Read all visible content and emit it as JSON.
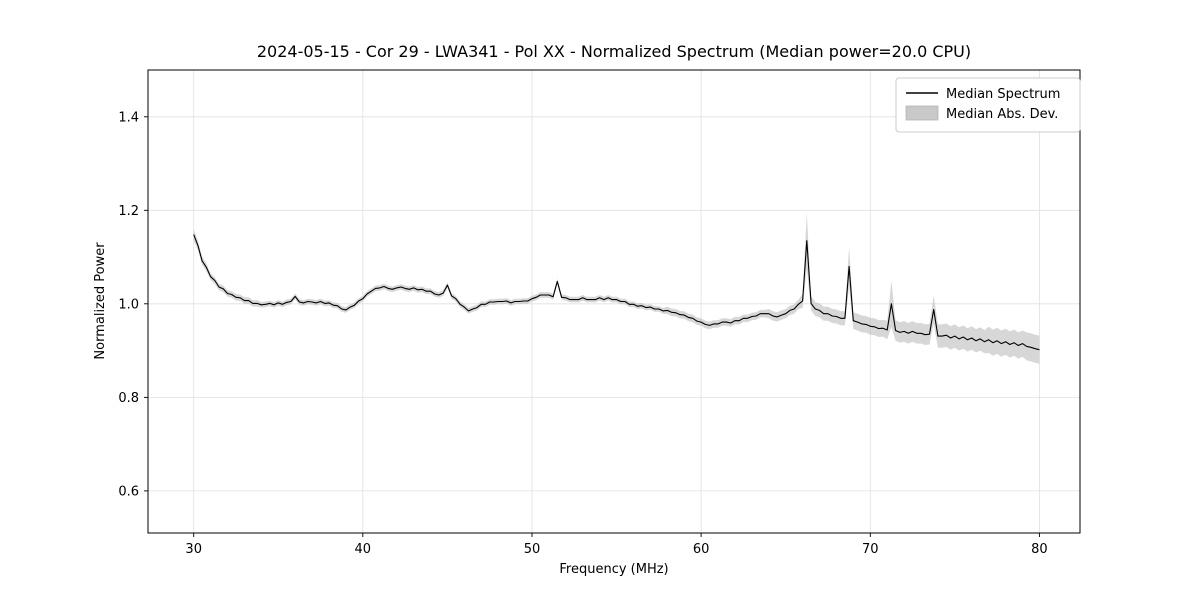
{
  "figure": {
    "background": "#ffffff"
  },
  "chart_data": {
    "type": "line",
    "title": "2024-05-15 - Cor 29 - LWA341 - Pol XX - Normalized Spectrum (Median power=20.0 CPU)",
    "xlabel": "Frequency (MHz)",
    "ylabel": "Normalized Power",
    "xlim": [
      27.3,
      82.4
    ],
    "ylim": [
      0.51,
      1.5
    ],
    "xticks": [
      30,
      40,
      50,
      60,
      70,
      80
    ],
    "yticks": [
      0.6,
      0.8,
      1.0,
      1.2,
      1.4
    ],
    "grid": true,
    "grid_color": "#e0e0e0",
    "line_color": "#000000",
    "band_color": "#bdbdbd",
    "band_opacity": 0.6,
    "legend": {
      "position": "upper right",
      "entries": [
        {
          "label": "Median Spectrum",
          "type": "line",
          "color": "#000000"
        },
        {
          "label": "Median Abs. Dev.",
          "type": "patch",
          "color": "#c9c9c9"
        }
      ]
    },
    "series": [
      {
        "name": "Median Spectrum",
        "key": "median"
      },
      {
        "name": "Median Abs. Dev.",
        "key": "mad"
      }
    ],
    "x": [
      30,
      30.25,
      30.5,
      30.75,
      31,
      31.25,
      31.5,
      31.75,
      32,
      32.25,
      32.5,
      32.75,
      33,
      33.25,
      33.5,
      33.75,
      34,
      34.25,
      34.5,
      34.75,
      35,
      35.25,
      35.5,
      35.75,
      36,
      36.25,
      36.5,
      36.75,
      37,
      37.25,
      37.5,
      37.75,
      38,
      38.25,
      38.5,
      38.75,
      39,
      39.25,
      39.5,
      39.75,
      40,
      40.25,
      40.5,
      40.75,
      41,
      41.25,
      41.5,
      41.75,
      42,
      42.25,
      42.5,
      42.75,
      43,
      43.25,
      43.5,
      43.75,
      44,
      44.25,
      44.5,
      44.75,
      45,
      45.25,
      45.5,
      45.75,
      46,
      46.25,
      46.5,
      46.75,
      47,
      47.25,
      47.5,
      47.75,
      48,
      48.25,
      48.5,
      48.75,
      49,
      49.25,
      49.5,
      49.75,
      50,
      50.25,
      50.5,
      50.75,
      51,
      51.25,
      51.5,
      51.75,
      52,
      52.25,
      52.5,
      52.75,
      53,
      53.25,
      53.5,
      53.75,
      54,
      54.25,
      54.5,
      54.75,
      55,
      55.25,
      55.5,
      55.75,
      56,
      56.25,
      56.5,
      56.75,
      57,
      57.25,
      57.5,
      57.75,
      58,
      58.25,
      58.5,
      58.75,
      59,
      59.25,
      59.5,
      59.75,
      60,
      60.25,
      60.5,
      60.75,
      61,
      61.25,
      61.5,
      61.75,
      62,
      62.25,
      62.5,
      62.75,
      63,
      63.25,
      63.5,
      63.75,
      64,
      64.25,
      64.5,
      64.75,
      65,
      65.25,
      65.5,
      65.75,
      66,
      66.25,
      66.5,
      66.75,
      67,
      67.25,
      67.5,
      67.75,
      68,
      68.25,
      68.5,
      68.75,
      69,
      69.25,
      69.5,
      69.75,
      70,
      70.25,
      70.5,
      70.75,
      71,
      71.25,
      71.5,
      71.75,
      72,
      72.25,
      72.5,
      72.75,
      73,
      73.25,
      73.5,
      73.75,
      74,
      74.25,
      74.5,
      74.75,
      75,
      75.25,
      75.5,
      75.75,
      76,
      76.25,
      76.5,
      76.75,
      77,
      77.25,
      77.5,
      77.75,
      78,
      78.25,
      78.5,
      78.75,
      79,
      79.25,
      79.5,
      79.75,
      80
    ],
    "median": [
      1.148,
      1.125,
      1.092,
      1.078,
      1.058,
      1.05,
      1.036,
      1.032,
      1.022,
      1.02,
      1.014,
      1.013,
      1.007,
      1.007,
      1.001,
      1.001,
      0.998,
      0.999,
      1.001,
      0.998,
      1.002,
      0.999,
      1.003,
      1.005,
      1.016,
      1.004,
      1.002,
      1.005,
      1.004,
      1.002,
      1.005,
      1.001,
      1.002,
      0.997,
      0.996,
      0.989,
      0.987,
      0.993,
      0.997,
      1.006,
      1.011,
      1.021,
      1.027,
      1.033,
      1.034,
      1.037,
      1.033,
      1.031,
      1.034,
      1.036,
      1.033,
      1.031,
      1.034,
      1.03,
      1.031,
      1.027,
      1.027,
      1.021,
      1.019,
      1.023,
      1.04,
      1.017,
      1.011,
      0.999,
      0.993,
      0.985,
      0.989,
      0.992,
      0.999,
      0.999,
      1.004,
      1.004,
      1.005,
      1.005,
      1.006,
      1.002,
      1.005,
      1.005,
      1.006,
      1.006,
      1.011,
      1.014,
      1.019,
      1.019,
      1.019,
      1.015,
      1.048,
      1.014,
      1.013,
      1.009,
      1.009,
      1.009,
      1.013,
      1.009,
      1.009,
      1.009,
      1.013,
      1.009,
      1.013,
      1.009,
      1.009,
      1.005,
      1.005,
      0.999,
      0.999,
      0.995,
      0.996,
      0.992,
      0.993,
      0.989,
      0.989,
      0.985,
      0.986,
      0.982,
      0.981,
      0.977,
      0.976,
      0.971,
      0.969,
      0.963,
      0.961,
      0.956,
      0.954,
      0.957,
      0.957,
      0.961,
      0.961,
      0.959,
      0.964,
      0.964,
      0.969,
      0.969,
      0.973,
      0.974,
      0.979,
      0.979,
      0.979,
      0.974,
      0.972,
      0.976,
      0.979,
      0.986,
      0.989,
      0.999,
      1.006,
      1.135,
      1.001,
      0.989,
      0.986,
      0.979,
      0.979,
      0.974,
      0.973,
      0.969,
      0.969,
      1.08,
      0.964,
      0.961,
      0.957,
      0.956,
      0.952,
      0.951,
      0.947,
      0.948,
      0.944,
      1.0,
      0.943,
      0.939,
      0.941,
      0.937,
      0.941,
      0.937,
      0.937,
      0.934,
      0.935,
      0.988,
      0.931,
      0.931,
      0.933,
      0.927,
      0.931,
      0.925,
      0.929,
      0.923,
      0.927,
      0.921,
      0.925,
      0.919,
      0.923,
      0.917,
      0.921,
      0.915,
      0.919,
      0.913,
      0.917,
      0.911,
      0.915,
      0.909,
      0.907,
      0.904,
      0.902
    ],
    "mad": [
      0.012,
      0.01,
      0.009,
      0.008,
      0.007,
      0.007,
      0.007,
      0.007,
      0.007,
      0.007,
      0.007,
      0.007,
      0.007,
      0.007,
      0.007,
      0.007,
      0.006,
      0.006,
      0.006,
      0.006,
      0.006,
      0.006,
      0.006,
      0.006,
      0.006,
      0.006,
      0.006,
      0.006,
      0.006,
      0.006,
      0.006,
      0.006,
      0.006,
      0.006,
      0.006,
      0.006,
      0.006,
      0.006,
      0.006,
      0.006,
      0.006,
      0.006,
      0.006,
      0.006,
      0.006,
      0.006,
      0.006,
      0.006,
      0.006,
      0.006,
      0.006,
      0.006,
      0.006,
      0.006,
      0.006,
      0.006,
      0.006,
      0.006,
      0.006,
      0.006,
      0.006,
      0.006,
      0.006,
      0.006,
      0.006,
      0.006,
      0.006,
      0.006,
      0.006,
      0.006,
      0.006,
      0.006,
      0.006,
      0.006,
      0.006,
      0.006,
      0.006,
      0.006,
      0.006,
      0.006,
      0.006,
      0.006,
      0.006,
      0.006,
      0.006,
      0.006,
      0.006,
      0.006,
      0.006,
      0.006,
      0.006,
      0.006,
      0.006,
      0.006,
      0.006,
      0.006,
      0.006,
      0.006,
      0.006,
      0.006,
      0.006,
      0.006,
      0.006,
      0.006,
      0.006,
      0.006,
      0.006,
      0.006,
      0.006,
      0.006,
      0.006,
      0.006,
      0.008,
      0.008,
      0.008,
      0.008,
      0.008,
      0.008,
      0.008,
      0.008,
      0.008,
      0.008,
      0.008,
      0.008,
      0.008,
      0.008,
      0.008,
      0.008,
      0.008,
      0.008,
      0.008,
      0.008,
      0.008,
      0.008,
      0.008,
      0.008,
      0.01,
      0.01,
      0.01,
      0.01,
      0.01,
      0.01,
      0.01,
      0.01,
      0.015,
      0.06,
      0.015,
      0.015,
      0.015,
      0.015,
      0.015,
      0.015,
      0.015,
      0.015,
      0.015,
      0.042,
      0.018,
      0.018,
      0.018,
      0.018,
      0.018,
      0.018,
      0.018,
      0.018,
      0.02,
      0.05,
      0.022,
      0.022,
      0.022,
      0.022,
      0.022,
      0.022,
      0.022,
      0.022,
      0.022,
      0.03,
      0.025,
      0.025,
      0.025,
      0.025,
      0.025,
      0.025,
      0.025,
      0.025,
      0.025,
      0.025,
      0.025,
      0.025,
      0.028,
      0.028,
      0.028,
      0.028,
      0.028,
      0.028,
      0.028,
      0.028,
      0.028,
      0.03,
      0.03,
      0.03,
      0.03
    ]
  }
}
